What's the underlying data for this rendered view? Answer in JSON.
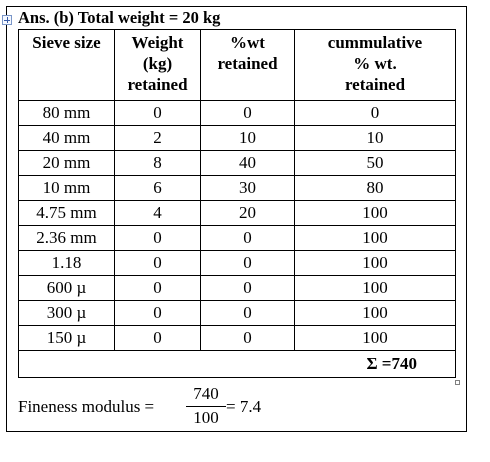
{
  "heading": {
    "prefix": "Ans. (b)",
    "title": "Total weight = 20 kg"
  },
  "table": {
    "headers": {
      "sieve_size": "Sieve size",
      "weight_line1": "Weight",
      "weight_line2": "(kg)",
      "weight_line3": "retained",
      "pct_line1": "%wt",
      "pct_line2": "retained",
      "cum_line1": "cummulative",
      "cum_line2": "% wt.",
      "cum_line3": "retained"
    },
    "rows": [
      {
        "size": "80 mm",
        "weight": "0",
        "pct": "0",
        "cum": "0"
      },
      {
        "size": "40 mm",
        "weight": "2",
        "pct": "10",
        "cum": "10"
      },
      {
        "size": "20 mm",
        "weight": "8",
        "pct": "40",
        "cum": "50"
      },
      {
        "size": "10 mm",
        "weight": "6",
        "pct": "30",
        "cum": "80"
      },
      {
        "size": "4.75 mm",
        "weight": "4",
        "pct": "20",
        "cum": "100"
      },
      {
        "size": "2.36 mm",
        "weight": "0",
        "pct": "0",
        "cum": "100"
      },
      {
        "size": "1.18",
        "weight": "0",
        "pct": "0",
        "cum": "100"
      },
      {
        "size": "600 µ",
        "weight": "0",
        "pct": "0",
        "cum": "100"
      },
      {
        "size": "300 µ",
        "weight": "0",
        "pct": "0",
        "cum": "100"
      },
      {
        "size": "150 µ",
        "weight": "0",
        "pct": "0",
        "cum": "100"
      }
    ],
    "sum_label": "Σ =740"
  },
  "formula": {
    "label": "Fineness modulus =",
    "numerator": "740",
    "denominator": "100",
    "result": "= 7.4"
  },
  "icons": {
    "move_handle": "table-move-handle-icon",
    "resize_handle": "table-resize-handle-icon"
  }
}
